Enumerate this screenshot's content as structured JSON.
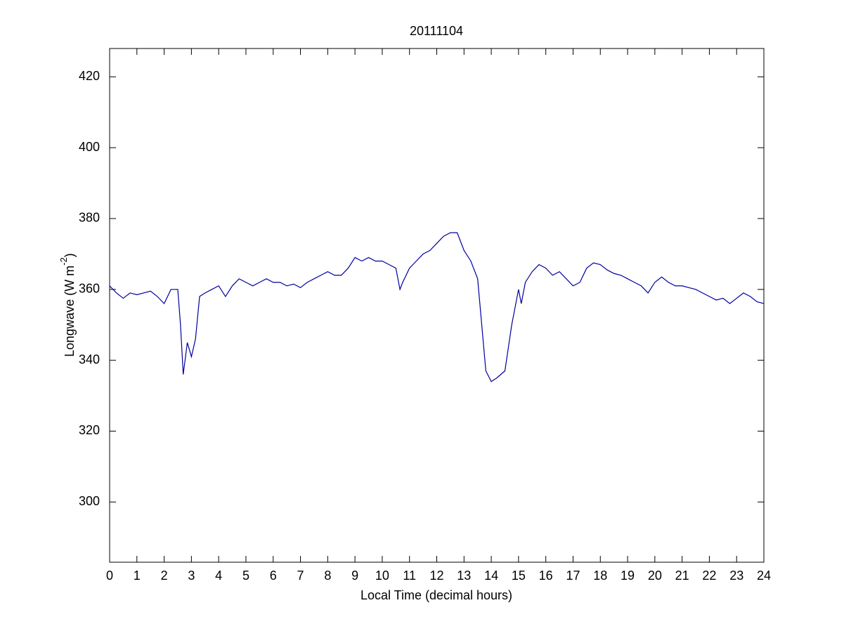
{
  "chart_data": {
    "type": "line",
    "title": "20111104",
    "xlabel": "Local Time (decimal hours)",
    "ylabel": [
      "Longwave (W m",
      "-2",
      ")"
    ],
    "x": [
      0,
      0.25,
      0.5,
      0.75,
      1,
      1.25,
      1.5,
      1.75,
      2,
      2.25,
      2.5,
      2.6,
      2.7,
      2.85,
      3,
      3.15,
      3.3,
      3.5,
      3.75,
      4,
      4.25,
      4.5,
      4.75,
      5,
      5.25,
      5.5,
      5.75,
      6,
      6.25,
      6.5,
      6.75,
      7,
      7.25,
      7.5,
      7.75,
      8,
      8.25,
      8.5,
      8.75,
      9,
      9.25,
      9.5,
      9.75,
      10,
      10.25,
      10.5,
      10.65,
      10.75,
      11,
      11.25,
      11.5,
      11.75,
      12,
      12.25,
      12.5,
      12.75,
      13,
      13.25,
      13.5,
      13.65,
      13.8,
      14,
      14.2,
      14.5,
      14.75,
      15,
      15.1,
      15.25,
      15.5,
      15.75,
      16,
      16.25,
      16.5,
      16.75,
      17,
      17.25,
      17.5,
      17.75,
      18,
      18.25,
      18.5,
      18.75,
      19,
      19.25,
      19.5,
      19.75,
      20,
      20.25,
      20.5,
      20.75,
      21,
      21.25,
      21.5,
      21.75,
      22,
      22.25,
      22.5,
      22.75,
      23,
      23.25,
      23.5,
      23.75,
      24
    ],
    "series": [
      {
        "name": "Longwave",
        "color": "#0000a0",
        "values": [
          361,
          359,
          357.5,
          359,
          358.5,
          359,
          359.5,
          358,
          356,
          360,
          360,
          350,
          336,
          345,
          341,
          346,
          358,
          359,
          360,
          361,
          358,
          361,
          363,
          362,
          361,
          362,
          363,
          362,
          362,
          361,
          361.5,
          360.5,
          362,
          363,
          364,
          365,
          364,
          364,
          366,
          369,
          368,
          369,
          368,
          368,
          367,
          366,
          360,
          362,
          366,
          368,
          370,
          371,
          373,
          375,
          376,
          376,
          371,
          368,
          363,
          350,
          337,
          334,
          335,
          337,
          350,
          360,
          356,
          362,
          365,
          367,
          366,
          364,
          365,
          363,
          361,
          362,
          366,
          367.5,
          367,
          365.5,
          364.5,
          364,
          363,
          362,
          361,
          359,
          362,
          363.5,
          362,
          361,
          361,
          360.5,
          360,
          359,
          358,
          357,
          357.5,
          356,
          357.5,
          359,
          358,
          356.5,
          356
        ]
      }
    ],
    "xlim": [
      0,
      24
    ],
    "ylim": [
      283,
      428
    ],
    "xticks": [
      0,
      1,
      2,
      3,
      4,
      5,
      6,
      7,
      8,
      9,
      10,
      11,
      12,
      13,
      14,
      15,
      16,
      17,
      18,
      19,
      20,
      21,
      22,
      23,
      24
    ],
    "yticks": [
      300,
      320,
      340,
      360,
      380,
      400,
      420
    ]
  }
}
